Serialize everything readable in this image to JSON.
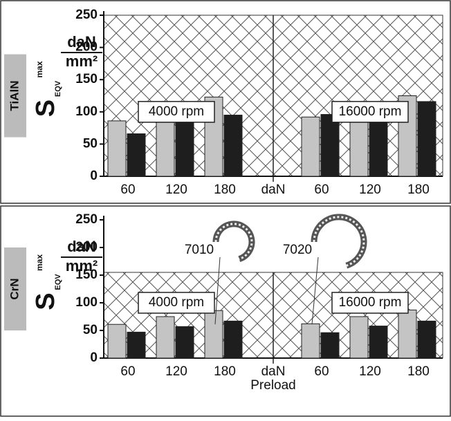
{
  "chart_data": [
    {
      "type": "bar",
      "panel_label": "TiAlN",
      "y_label": "S",
      "y_label_sub": "EQV",
      "y_label_sup": "max",
      "y_unit_num": "daN",
      "y_unit_den": "mm²",
      "categories": [
        "60",
        "120",
        "180",
        "60",
        "120",
        "180"
      ],
      "groups": [
        "4000 rpm",
        "16000 rpm"
      ],
      "x_unit": "daN",
      "series": [
        {
          "color": "#c4c4c4",
          "values": [
            86,
            108,
            123,
            92,
            111,
            125
          ]
        },
        {
          "color": "#1e1e1e",
          "values": [
            66,
            84,
            95,
            96,
            107,
            116
          ]
        }
      ],
      "ylim": [
        0,
        250
      ],
      "yticks": [
        0,
        50,
        100,
        150,
        200,
        250
      ],
      "limit": 250
    },
    {
      "type": "bar",
      "panel_label": "CrN",
      "y_label": "S",
      "y_label_sub": "EQV",
      "y_label_sup": "max",
      "y_unit_num": "daN",
      "y_unit_den": "mm²",
      "categories": [
        "60",
        "120",
        "180",
        "60",
        "120",
        "180"
      ],
      "groups": [
        "4000 rpm",
        "16000 rpm"
      ],
      "x_unit": "daN",
      "x_label": "Preload",
      "series": [
        {
          "name": "7010",
          "color": "#c4c4c4",
          "values": [
            61,
            75,
            86,
            62,
            75,
            87
          ]
        },
        {
          "name": "7020",
          "color": "#1e1e1e",
          "values": [
            47,
            57,
            67,
            46,
            58,
            67
          ]
        }
      ],
      "ylim": [
        0,
        250
      ],
      "yticks": [
        0,
        50,
        100,
        150,
        200,
        250
      ],
      "limit": 155
    }
  ]
}
